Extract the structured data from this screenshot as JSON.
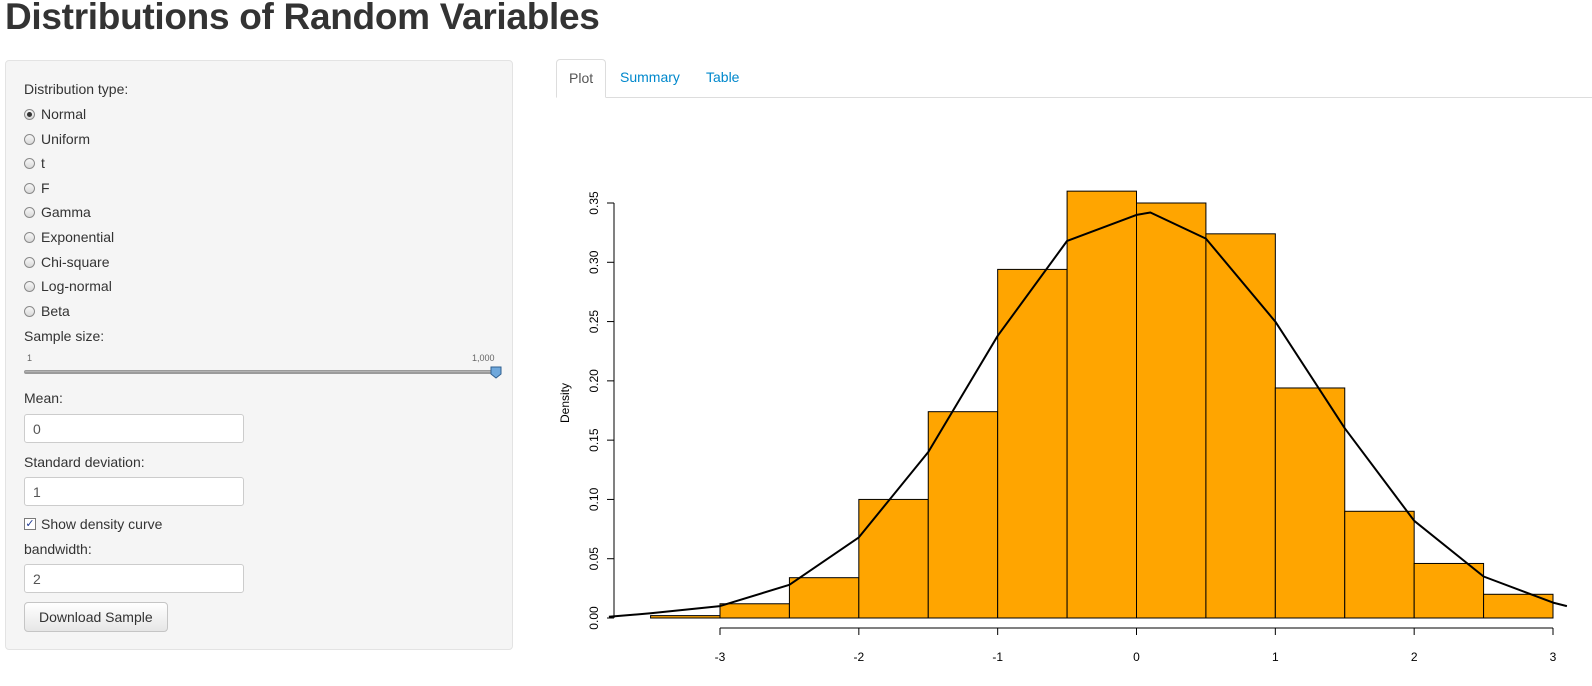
{
  "app": {
    "title": "Distributions of Random Variables"
  },
  "sidebar": {
    "distribution_label": "Distribution type:",
    "distributions": [
      {
        "label": "Normal",
        "checked": true
      },
      {
        "label": "Uniform",
        "checked": false
      },
      {
        "label": "t",
        "checked": false
      },
      {
        "label": "F",
        "checked": false
      },
      {
        "label": "Gamma",
        "checked": false
      },
      {
        "label": "Exponential",
        "checked": false
      },
      {
        "label": "Chi-square",
        "checked": false
      },
      {
        "label": "Log-normal",
        "checked": false
      },
      {
        "label": "Beta",
        "checked": false
      }
    ],
    "sample_size_label": "Sample size:",
    "slider": {
      "min_label": "1",
      "max_label": "1,000",
      "value": 1000
    },
    "mean_label": "Mean:",
    "mean_value": "0",
    "sd_label": "Standard deviation:",
    "sd_value": "1",
    "density_checkbox_label": "Show density curve",
    "density_checked": true,
    "bandwidth_label": "bandwidth:",
    "bandwidth_value": "2",
    "download_button": "Download Sample"
  },
  "tabs": [
    {
      "label": "Plot",
      "active": true
    },
    {
      "label": "Summary",
      "active": false
    },
    {
      "label": "Table",
      "active": false
    }
  ],
  "colors": {
    "bar_fill": "#FFA500",
    "link": "#0088cc"
  },
  "chart_data": {
    "type": "bar",
    "ylabel": "Density",
    "xticks": [
      -3,
      -2,
      -1,
      0,
      1,
      2,
      3
    ],
    "yticks": [
      "0.00",
      "0.05",
      "0.10",
      "0.15",
      "0.20",
      "0.25",
      "0.30",
      "0.35"
    ],
    "ylim": [
      0,
      0.35
    ],
    "bins": [
      {
        "x0": -3.5,
        "x1": -3.0,
        "density": 0.002
      },
      {
        "x0": -3.0,
        "x1": -2.5,
        "density": 0.012
      },
      {
        "x0": -2.5,
        "x1": -2.0,
        "density": 0.034
      },
      {
        "x0": -2.0,
        "x1": -1.5,
        "density": 0.1
      },
      {
        "x0": -1.5,
        "x1": -1.0,
        "density": 0.174
      },
      {
        "x0": -1.0,
        "x1": -0.5,
        "density": 0.294
      },
      {
        "x0": -0.5,
        "x1": 0.0,
        "density": 0.36
      },
      {
        "x0": 0.0,
        "x1": 0.5,
        "density": 0.35
      },
      {
        "x0": 0.5,
        "x1": 1.0,
        "density": 0.324
      },
      {
        "x0": 1.0,
        "x1": 1.5,
        "density": 0.194
      },
      {
        "x0": 1.5,
        "x1": 2.0,
        "density": 0.09
      },
      {
        "x0": 2.0,
        "x1": 2.5,
        "density": 0.046
      },
      {
        "x0": 2.5,
        "x1": 3.0,
        "density": 0.02
      }
    ],
    "density_curve": {
      "x": [
        -3.8,
        -3.5,
        -3.0,
        -2.5,
        -2.0,
        -1.5,
        -1.0,
        -0.5,
        0.0,
        0.1,
        0.5,
        1.0,
        1.5,
        2.0,
        2.5,
        3.0,
        3.1
      ],
      "y": [
        0.001,
        0.004,
        0.01,
        0.028,
        0.068,
        0.14,
        0.238,
        0.318,
        0.34,
        0.342,
        0.32,
        0.25,
        0.16,
        0.082,
        0.035,
        0.013,
        0.01
      ]
    }
  }
}
